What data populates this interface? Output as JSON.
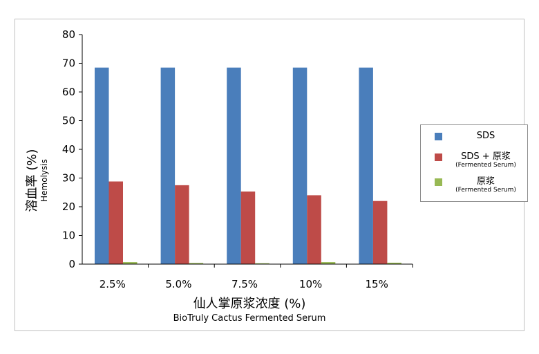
{
  "chart_data": {
    "type": "bar",
    "categories": [
      "2.5%",
      "5.0%",
      "7.5%",
      "10%",
      "15%"
    ],
    "series": [
      {
        "name": "SDS",
        "name_sub": "",
        "color": "#4a7ebb",
        "values": [
          68.5,
          68.5,
          68.5,
          68.5,
          68.5
        ]
      },
      {
        "name": "SDS + 原浆",
        "name_sub": "(Fermented Serum)",
        "color": "#be4b48",
        "values": [
          28.8,
          27.5,
          25.3,
          24.0,
          22.0
        ]
      },
      {
        "name": "原浆",
        "name_sub": "(Fermented Serum)",
        "color": "#98b954",
        "values": [
          0.7,
          0.4,
          0.3,
          0.7,
          0.5
        ]
      }
    ],
    "ylabel": "溶血率 (%)",
    "ylabel_sub": "Hemolysis",
    "xlabel": "仙人掌原浆浓度 (%)",
    "xlabel_sub": "BioTruly Cactus Fermented Serum",
    "ylim": [
      0,
      80
    ],
    "yticks": [
      "0",
      "10",
      "20",
      "30",
      "40",
      "50",
      "60",
      "70",
      "80"
    ],
    "grid": false,
    "legend": "right"
  }
}
